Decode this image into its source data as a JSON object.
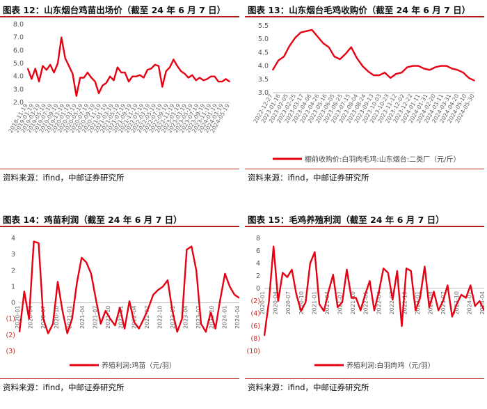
{
  "panels": [
    {
      "title": "图表 12：山东烟台鸡苗出场价（截至 24 年 6 月 7 日）",
      "source": "资料来源：ifind，中邮证券研究所",
      "legend": "",
      "color": "#e60012"
    },
    {
      "title": "图表 13：山东烟台毛鸡收购价（截至 24 年 6 月 7 日）",
      "source": "资料来源：ifind，中邮证券研究所",
      "legend": "棚前收购价:白羽肉毛鸡:山东烟台:二类厂（元/斤）",
      "color": "#e60012"
    },
    {
      "title": "图表 14：鸡苗利润（截至 24 年 6 月 7 日）",
      "source": "资料来源：ifind，中邮证券研究所",
      "legend": "养殖利润:鸡苗（元/羽）",
      "color": "#e60012"
    },
    {
      "title": "图表 15：毛鸡养殖利润（截至 24 年 6 月 7 日）",
      "source": "资料来源：ifind，中邮证券研究所",
      "legend": "养殖利润:白羽肉鸡（元/羽）",
      "color": "#e60012"
    }
  ],
  "chart_data": [
    {
      "type": "line",
      "title": "",
      "ylim": [
        2.0,
        8.0
      ],
      "yticks": [
        "8.0",
        "7.0",
        "6.0",
        "5.0",
        "4.0",
        "3.0",
        "2.0"
      ],
      "x_labels": [
        "2018-11-19",
        "2019-01-19",
        "2019-03-19",
        "2019-05-19",
        "2019-07-19",
        "2019-09-19",
        "2019-11-19",
        "2020-01-19",
        "2020-03-19",
        "2020-05-19",
        "2020-07-19",
        "2020-09-19",
        "2020-11-19",
        "2021-01-19",
        "2021-03-19",
        "2021-05-19",
        "2021-07-19",
        "2021-09-19",
        "2021-11-19",
        "2022-01-19",
        "2022-03-19",
        "2022-05-19",
        "2022-07-19",
        "2022-09-19",
        "2022-11-19",
        "2023-01-19",
        "2023-03-19",
        "2023-05-19",
        "2023-07-19",
        "2023-09-19",
        "2023-11-19",
        "2024-01-19",
        "2024-03-19",
        "2024-05-19"
      ],
      "series": [
        {
          "name": "",
          "values": [
            4.6,
            3.8,
            4.6,
            3.6,
            4.8,
            4.5,
            4.9,
            4.3,
            5.0,
            7.0,
            5.4,
            4.8,
            4.2,
            2.5,
            3.9,
            3.9,
            4.3,
            3.9,
            3.6,
            2.7,
            3.3,
            3.5,
            4.0,
            3.7,
            4.7,
            4.3,
            4.3,
            3.6,
            4.0,
            4.0,
            4.1,
            3.9,
            4.5,
            4.6,
            4.9,
            4.8,
            3.2,
            4.4,
            4.7,
            5.3,
            4.8,
            4.4,
            4.2,
            3.9,
            4.1,
            3.7,
            3.9,
            3.7,
            3.8,
            4.0,
            4.0,
            3.6,
            3.6,
            3.8,
            3.6
          ]
        }
      ]
    },
    {
      "type": "line",
      "title": "",
      "ylim": [
        3.0,
        5.5
      ],
      "yticks": [
        "5.5",
        "5.0",
        "4.5",
        "4.0",
        "3.5",
        "3.0"
      ],
      "x_labels": [
        "2022-12-27",
        "2023-01-16",
        "2023-02-05",
        "2023-02-25",
        "2023-03-17",
        "2023-04-06",
        "2023-04-26",
        "2023-05-16",
        "2023-06-05",
        "2023-06-25",
        "2023-07-15",
        "2023-08-04",
        "2023-08-24",
        "2023-09-13",
        "2023-10-03",
        "2023-10-23",
        "2023-11-12",
        "2023-12-02",
        "2023-12-22",
        "2024-01-11",
        "2024-01-31",
        "2024-02-20",
        "2024-03-11",
        "2024-03-31",
        "2024-04-20",
        "2024-05-10",
        "2024-05-30"
      ],
      "series": [
        {
          "name": "棚前收购价:白羽肉毛鸡:山东烟台:二类厂（元/斤）",
          "values": [
            3.85,
            4.2,
            4.35,
            4.75,
            5.05,
            5.25,
            5.3,
            5.35,
            5.1,
            4.85,
            4.7,
            4.35,
            4.25,
            4.45,
            4.7,
            4.3,
            4.0,
            3.8,
            3.65,
            3.65,
            3.75,
            3.55,
            3.7,
            3.75,
            3.95,
            4.0,
            4.0,
            3.9,
            3.85,
            3.95,
            4.0,
            4.0,
            3.9,
            3.85,
            3.75,
            3.55,
            3.45
          ]
        }
      ]
    },
    {
      "type": "line",
      "title": "",
      "ylim": [
        -3,
        4
      ],
      "yticks": [
        "4",
        "3",
        "2",
        "1",
        "0",
        "(1)",
        "(2)",
        "(3)"
      ],
      "x_labels": [
        "2020-01",
        "2020-04",
        "2020-07",
        "2020-10",
        "2021-01",
        "2021-04",
        "2021-07",
        "2021-10",
        "2022-01",
        "2022-04",
        "2022-07",
        "2022-10",
        "2023-01",
        "2023-04",
        "2023-07",
        "2023-10",
        "2024-01",
        "2024-04"
      ],
      "series": [
        {
          "name": "养殖利润:鸡苗（元/羽）",
          "values": [
            -1.8,
            0.7,
            -1.0,
            3.8,
            3.7,
            -1.0,
            -1.9,
            -1.3,
            1.3,
            -0.5,
            -1.9,
            -1.0,
            1.2,
            2.8,
            2.5,
            1.8,
            0.2,
            -1.3,
            -0.5,
            -1.0,
            -1.4,
            -0.3,
            -1.6,
            0.1,
            -1.2,
            -1.6,
            -1.0,
            -0.3,
            0.5,
            0.8,
            1.0,
            1.4,
            -0.5,
            -1.8,
            -1.0,
            3.3,
            3.5,
            2.0,
            -1.3,
            -1.8,
            -0.6,
            -1.6,
            0.2,
            1.8,
            1.0,
            0.5,
            0.3
          ]
        }
      ]
    },
    {
      "type": "line",
      "title": "",
      "ylim": [
        -10,
        8
      ],
      "yticks": [
        "8",
        "6",
        "4",
        "2",
        "0",
        "(2)",
        "(4)",
        "(6)",
        "(8)",
        "(10)"
      ],
      "x_labels": [
        "2020-01",
        "2020-04",
        "2020-07",
        "2020-10",
        "2021-01",
        "2021-04",
        "2021-07",
        "2021-10",
        "2022-01",
        "2022-04",
        "2022-07",
        "2022-10",
        "2023-01",
        "2023-04",
        "2023-07",
        "2023-10",
        "2024-01",
        "2024-04"
      ],
      "series": [
        {
          "name": "养殖利润:白羽肉鸡（元/羽）",
          "values": [
            -7.5,
            -2.0,
            6.7,
            -2.0,
            2.5,
            1.8,
            3.0,
            -1.0,
            -3.6,
            -2.2,
            4.0,
            5.8,
            -2.5,
            -3.6,
            -0.5,
            2.2,
            -3.0,
            -2.2,
            3.0,
            -1.5,
            -1.5,
            -3.5,
            -1.0,
            1.2,
            -3.5,
            -0.5,
            3.2,
            2.5,
            -1.8,
            2.8,
            -6.0,
            3.2,
            2.8,
            -3.5,
            -1.5,
            3.5,
            -3.0,
            -0.5,
            -3.5,
            -2.0,
            0.5,
            -4.5,
            -2.5,
            -1.0,
            -1.5,
            0.5,
            -2.8,
            -2.0,
            -3.5
          ]
        }
      ]
    }
  ]
}
